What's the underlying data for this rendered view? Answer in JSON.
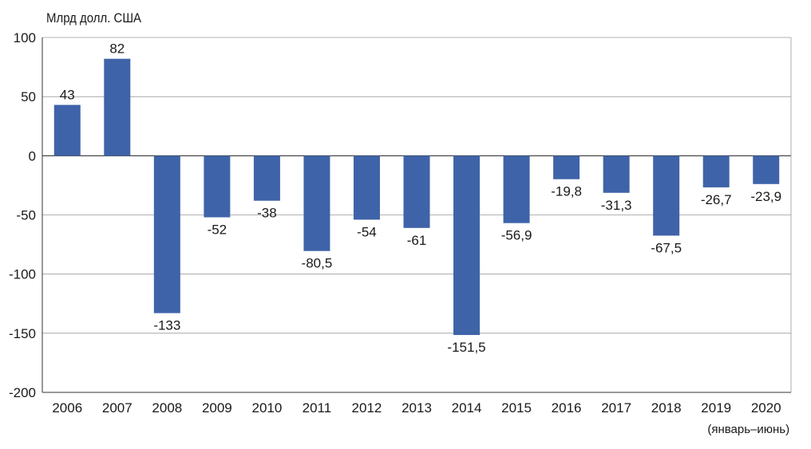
{
  "chart_data": {
    "type": "bar",
    "ylabel": "Млрд долл. США",
    "xlabel": "",
    "categories": [
      "2006",
      "2007",
      "2008",
      "2009",
      "2010",
      "2011",
      "2012",
      "2013",
      "2014",
      "2015",
      "2016",
      "2017",
      "2018",
      "2019",
      "2020"
    ],
    "category_note": "(январь–июнь)",
    "values": [
      43,
      82,
      -133,
      -52,
      -38,
      -80.5,
      -54,
      -61,
      -151.5,
      -56.9,
      -19.8,
      -31.3,
      -67.5,
      -26.7,
      -23.9
    ],
    "value_labels": [
      "43",
      "82",
      "-133",
      "-52",
      "-38",
      "-80,5",
      "-54",
      "-61",
      "-151,5",
      "-56,9",
      "-19,8",
      "-31,3",
      "-67,5",
      "-26,7",
      "-23,9"
    ],
    "ylim": [
      -200,
      100
    ],
    "yticks": [
      100,
      50,
      0,
      -50,
      -100,
      -150,
      -200
    ],
    "ytick_labels": [
      "100",
      "50",
      "0",
      "-50",
      "-100",
      "-150",
      "-200"
    ],
    "grid": true,
    "colors": {
      "bar": "#3e63a8",
      "grid": "#9a9a9a",
      "axis": "#333333"
    }
  }
}
